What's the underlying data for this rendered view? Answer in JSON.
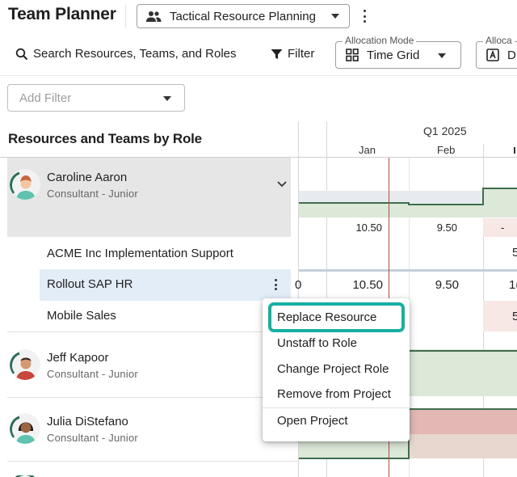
{
  "header": {
    "app_title": "Team Planner",
    "view_select_label": "Tactical Resource Planning"
  },
  "toolbar": {
    "search_label": "Search Resources, Teams, and Roles",
    "filter_label": "Filter",
    "allocation_mode_label": "Allocation Mode",
    "allocation_mode_value": "Time Grid",
    "allocation_second_label": "Alloca",
    "allocation_second_value": "D",
    "add_filter_placeholder": "Add Filter"
  },
  "grid": {
    "left_title": "Resources and Teams by Role",
    "quarter": "Q1 2025",
    "months": [
      "Jan",
      "Feb"
    ]
  },
  "resources": [
    {
      "name": "Caroline Aaron",
      "role": "Consultant - Junior",
      "totals": [
        "10.50",
        "9.50",
        "-"
      ],
      "projects": [
        {
          "name": "ACME Inc Implementation Support",
          "values": [
            "",
            "",
            "5"
          ]
        },
        {
          "name": "Rollout SAP HR",
          "values": [
            "0",
            "10.50",
            "9.50",
            "1("
          ]
        },
        {
          "name": "Mobile Sales",
          "values": [
            "",
            "",
            "5"
          ]
        }
      ]
    },
    {
      "name": "Jeff Kapoor",
      "role": "Consultant - Junior"
    },
    {
      "name": "Julia DiStefano",
      "role": "Consultant - Junior"
    }
  ],
  "context_menu": {
    "items": [
      "Replace Resource",
      "Unstaff to Role",
      "Change Project Role",
      "Remove from Project",
      "Open Project"
    ]
  },
  "colors": {
    "highlight": "#17b0a2",
    "selected_row": "#e3edf7",
    "expanded_resource": "#e6e6e6",
    "capacity_green": "#dce8d8",
    "capacity_line": "#3f6e4e",
    "over_red": "#e3b7b4",
    "today_line": "#b94a3b"
  }
}
